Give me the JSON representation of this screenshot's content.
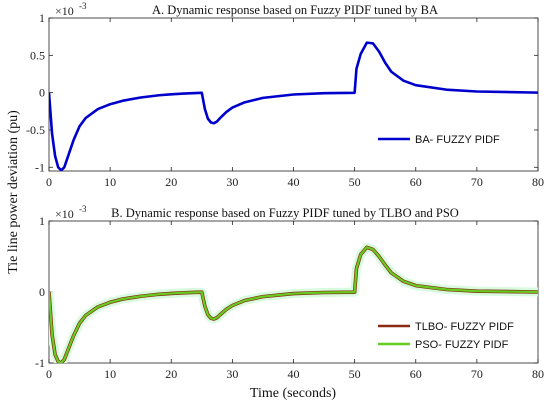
{
  "figure": {
    "ylabel": "Tie line power deviation (pu)",
    "xlabel": "Time (seconds)"
  },
  "colors": {
    "ba": "#0000cc",
    "tlbo": "#8b2a10",
    "pso": "#66cc22",
    "pso_halo": "#d8fbe0"
  },
  "chart_data": [
    {
      "type": "line",
      "title": "A. Dynamic response based on Fuzzy PIDF tuned by BA",
      "exponent_label": "×10",
      "exponent_power": "-3",
      "xlim": [
        0,
        80
      ],
      "ylim": [
        -1.05,
        1.0
      ],
      "x_ticks": [
        0,
        10,
        20,
        30,
        40,
        50,
        60,
        70,
        80
      ],
      "y_ticks": [
        -1,
        -0.5,
        0,
        0.5,
        1
      ],
      "y_tick_labels": [
        "-1",
        "-0.5",
        "0",
        "0.5",
        "1"
      ],
      "legend_position": "bottom-right",
      "series": [
        {
          "name": "BA- FUZZY PIDF",
          "color_key": "ba",
          "x": [
            0,
            0.5,
            1,
            1.5,
            2,
            2.5,
            3,
            4,
            5,
            6,
            8,
            10,
            12,
            15,
            18,
            20,
            22,
            24,
            25,
            25.5,
            26,
            26.5,
            27,
            27.5,
            28,
            29,
            30,
            32,
            35,
            40,
            45,
            50,
            50.3,
            51,
            52,
            53,
            54,
            55,
            56,
            58,
            60,
            65,
            70,
            80
          ],
          "values": [
            0,
            -0.55,
            -0.85,
            -1.0,
            -1.04,
            -1.0,
            -0.88,
            -0.64,
            -0.45,
            -0.34,
            -0.22,
            -0.155,
            -0.11,
            -0.065,
            -0.035,
            -0.022,
            -0.012,
            -0.006,
            -0.003,
            -0.22,
            -0.35,
            -0.4,
            -0.41,
            -0.385,
            -0.34,
            -0.26,
            -0.2,
            -0.13,
            -0.07,
            -0.025,
            -0.008,
            -0.002,
            0.32,
            0.52,
            0.67,
            0.66,
            0.55,
            0.4,
            0.28,
            0.16,
            0.1,
            0.04,
            0.015,
            0
          ]
        }
      ]
    },
    {
      "type": "line",
      "title": "B. Dynamic response based on Fuzzy PIDF tuned by TLBO and PSO",
      "exponent_label": "×10",
      "exponent_power": "-3",
      "xlim": [
        0,
        80
      ],
      "ylim": [
        -1.0,
        1.0
      ],
      "x_ticks": [
        0,
        10,
        20,
        30,
        40,
        50,
        60,
        70,
        80
      ],
      "y_ticks": [
        -1,
        0,
        1
      ],
      "y_tick_labels": [
        "-1",
        "0",
        "1"
      ],
      "legend_position": "bottom-right",
      "series": [
        {
          "name": "TLBO- FUZZY PIDF",
          "color_key": "tlbo",
          "x": [
            0,
            0.5,
            1,
            1.5,
            2,
            2.5,
            3,
            4,
            5,
            6,
            8,
            10,
            12,
            15,
            18,
            20,
            22,
            24,
            25,
            25.5,
            26,
            26.5,
            27,
            27.5,
            28,
            29,
            30,
            32,
            35,
            40,
            45,
            50,
            50.3,
            51,
            52,
            53,
            54,
            55,
            56,
            58,
            60,
            65,
            70,
            80
          ],
          "values": [
            0,
            -0.6,
            -0.88,
            -0.98,
            -1.0,
            -0.95,
            -0.84,
            -0.62,
            -0.44,
            -0.33,
            -0.21,
            -0.145,
            -0.1,
            -0.06,
            -0.032,
            -0.02,
            -0.011,
            -0.005,
            -0.003,
            -0.2,
            -0.32,
            -0.37,
            -0.38,
            -0.36,
            -0.32,
            -0.245,
            -0.19,
            -0.12,
            -0.065,
            -0.022,
            -0.007,
            -0.002,
            0.33,
            0.53,
            0.63,
            0.6,
            0.5,
            0.38,
            0.27,
            0.15,
            0.09,
            0.035,
            0.012,
            0
          ]
        },
        {
          "name": "PSO- FUZZY PIDF",
          "color_key": "pso",
          "x": [
            0,
            0.5,
            1,
            1.5,
            2,
            2.5,
            3,
            4,
            5,
            6,
            8,
            10,
            12,
            15,
            18,
            20,
            22,
            24,
            25,
            25.5,
            26,
            26.5,
            27,
            27.5,
            28,
            29,
            30,
            32,
            35,
            40,
            45,
            50,
            50.3,
            51,
            52,
            53,
            54,
            55,
            56,
            58,
            60,
            65,
            70,
            80
          ],
          "values": [
            0,
            -0.6,
            -0.88,
            -0.98,
            -1.0,
            -0.95,
            -0.84,
            -0.62,
            -0.44,
            -0.33,
            -0.21,
            -0.145,
            -0.1,
            -0.06,
            -0.032,
            -0.02,
            -0.011,
            -0.005,
            -0.003,
            -0.2,
            -0.32,
            -0.37,
            -0.38,
            -0.36,
            -0.32,
            -0.245,
            -0.19,
            -0.12,
            -0.065,
            -0.022,
            -0.007,
            -0.002,
            0.33,
            0.53,
            0.63,
            0.6,
            0.5,
            0.38,
            0.27,
            0.15,
            0.09,
            0.035,
            0.012,
            0
          ]
        }
      ]
    }
  ]
}
